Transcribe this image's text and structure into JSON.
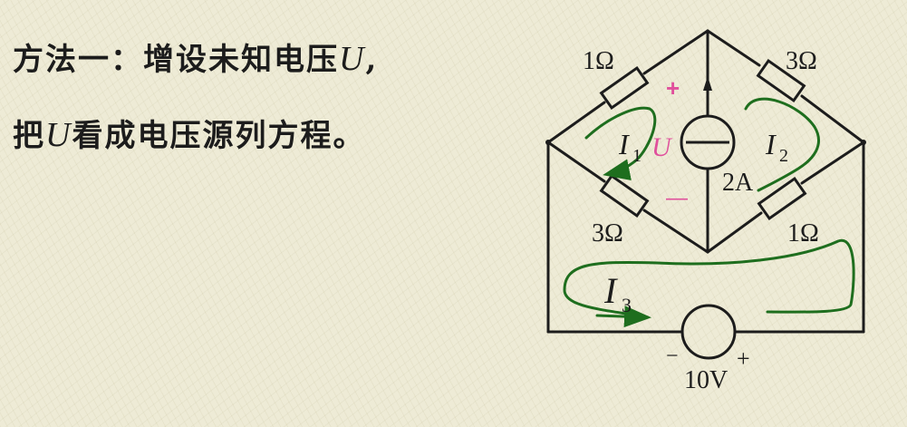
{
  "text": {
    "line1_prefix": "方法一：增设未知电压",
    "line1_var": "U",
    "line1_suffix": ",",
    "line2_prefix": "把",
    "line2_var": "U",
    "line2_suffix": "看成电压源列方程。"
  },
  "circuit": {
    "resistor_top_left": "1Ω",
    "resistor_top_right": "3Ω",
    "resistor_bottom_left": "3Ω",
    "resistor_bottom_right": "1Ω",
    "current_source": "2A",
    "voltage_source": "10V",
    "voltage_var": "U",
    "plus_sign": "+",
    "minus_sign": "—",
    "vs_minus": "−",
    "vs_plus": "+",
    "loop1_var": "I",
    "loop1_sub": "1",
    "loop2_var": "I",
    "loop2_sub": "2",
    "loop3_var": "I",
    "loop3_sub": "3"
  },
  "colors": {
    "wire": "#1c1c1c",
    "loop": "#1e6e1e",
    "voltage_label": "#e0509c"
  }
}
